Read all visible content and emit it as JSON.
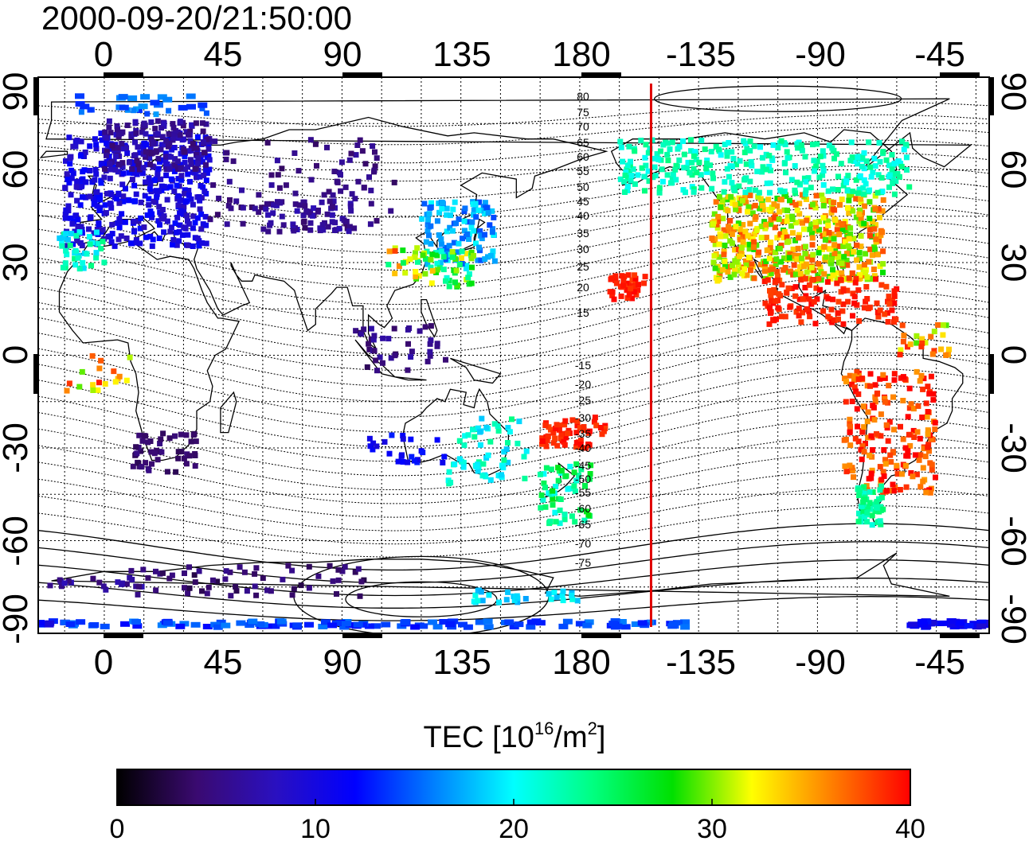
{
  "title": "2000-09-20/21:50:00",
  "colorbar": {
    "label": "TEC [10",
    "label_exp1": "16",
    "label_mid": "/m",
    "label_exp2": "2",
    "label_end": "]",
    "ticks": [
      "0",
      "10",
      "20",
      "30",
      "40"
    ],
    "range": [
      0,
      40
    ],
    "stops": [
      "#000000",
      "#3a0a70",
      "#2a10c0",
      "#0000ff",
      "#0080ff",
      "#00ffff",
      "#00ff80",
      "#00e000",
      "#ffff00",
      "#ff8000",
      "#ff0000"
    ]
  },
  "map": {
    "lon_ticks_top": [
      "0",
      "45",
      "90",
      "135",
      "180",
      "-135",
      "-90",
      "-45"
    ],
    "lon_ticks_bottom": [
      "0",
      "45",
      "90",
      "135",
      "180",
      "-135",
      "-90",
      "-45"
    ],
    "lat_ticks_left": [
      "90",
      "60",
      "30",
      "0",
      "-30",
      "-60",
      "-90"
    ],
    "lat_ticks_right": [
      "90",
      "60",
      "30",
      "0",
      "-30",
      "-60",
      "-90"
    ],
    "contour_labels": [
      "80",
      "75",
      "70",
      "65",
      "60",
      "55",
      "50",
      "45",
      "40",
      "35",
      "30",
      "25",
      "20",
      "15",
      "-15",
      "-20",
      "-25",
      "-30",
      "-35",
      "-40",
      "-45",
      "-50",
      "-55",
      "-60",
      "-65",
      "-70",
      "-75"
    ],
    "terminator_lon": -153,
    "marker_color": "#e00000"
  }
}
